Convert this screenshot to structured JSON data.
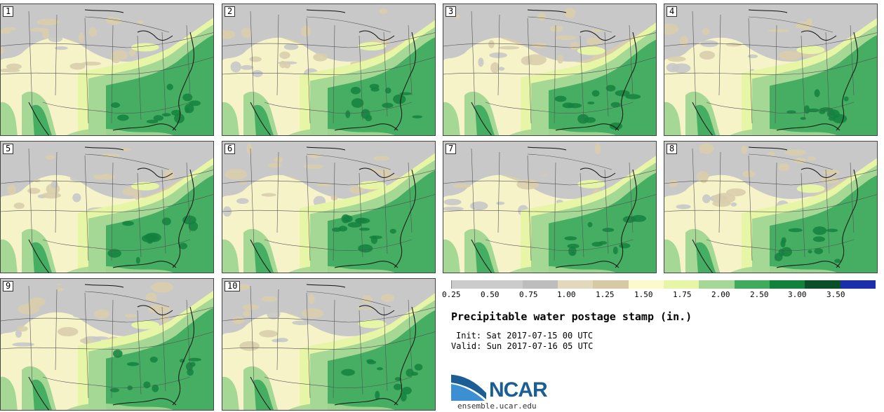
{
  "panels": [
    {
      "label": "1"
    },
    {
      "label": "2"
    },
    {
      "label": "3"
    },
    {
      "label": "4"
    },
    {
      "label": "5"
    },
    {
      "label": "6"
    },
    {
      "label": "7"
    },
    {
      "label": "8"
    },
    {
      "label": "9"
    },
    {
      "label": "10"
    }
  ],
  "colorbar": {
    "labels": [
      "0.25",
      "0.50",
      "0.75",
      "1.00",
      "1.25",
      "1.50",
      "1.75",
      "2.00",
      "2.50",
      "3.00",
      "3.50"
    ],
    "colors": [
      "#cbcbcb",
      "#cbcbcb",
      "#bdbdbd",
      "#e2d8bc",
      "#d6c9a4",
      "#fafacb",
      "#e7f5a6",
      "#a6d796",
      "#41ab5d",
      "#13803c",
      "#0b4f2a",
      "#1a2fa8"
    ]
  },
  "title": "Precipitable water postage stamp (in.)",
  "init": "Init: Sat 2017-07-15 00 UTC",
  "valid": "Valid: Sun 2017-07-16 05 UTC",
  "logo": {
    "name": "NCAR",
    "url": "ensemble.ucar.edu"
  },
  "map_colors": {
    "gray": "#c8c8c8",
    "tan": "#d9ceac",
    "cream": "#f6f3c9",
    "light_green": "#e7f5a6",
    "mid_green": "#a5d795",
    "green": "#45ae62",
    "dark_green": "#14823e",
    "ocean": "#f6f3c9",
    "boundary": "#555555"
  }
}
